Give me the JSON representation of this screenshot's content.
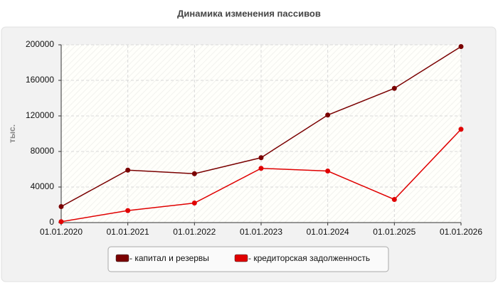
{
  "chart_data": {
    "type": "line",
    "title": "Динамика изменения пассивов",
    "y_label": "тыс.",
    "categories": [
      "01.01.2020",
      "01.01.2021",
      "01.01.2022",
      "01.01.2023",
      "01.01.2024",
      "01.01.2025",
      "01.01.2026"
    ],
    "series": [
      {
        "name": "- капитал и резервы",
        "color": "#7a0000",
        "values": [
          18000,
          59000,
          55000,
          73000,
          121000,
          151000,
          198000
        ]
      },
      {
        "name": "- кредиторская задолженность",
        "color": "#e00000",
        "values": [
          1000,
          13500,
          22000,
          61000,
          58000,
          26000,
          105000
        ]
      }
    ],
    "ylim": [
      0,
      200000
    ],
    "yticks": [
      0,
      40000,
      80000,
      120000,
      160000,
      200000
    ],
    "grid": true
  }
}
